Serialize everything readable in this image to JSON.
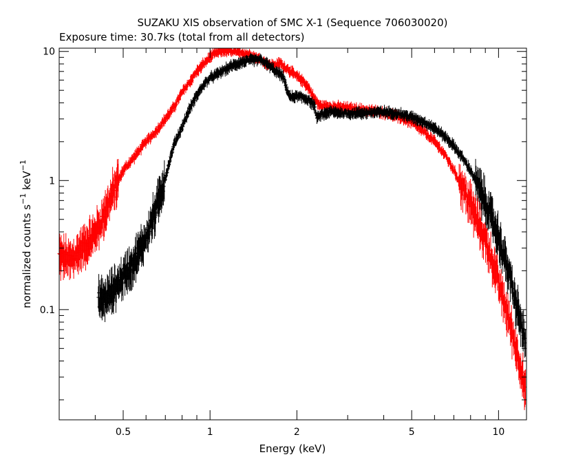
{
  "chart_data": {
    "type": "scatter",
    "title": "SUZAKU XIS observation of SMC X-1 (Sequence 706030020)",
    "subtitle": "Exposure time: 30.7ks (total from all detectors)",
    "xlabel": "Energy (keV)",
    "ylabel": "normalized counts s",
    "ylabel_sup1": "−1",
    "ylabel_mid": " keV",
    "ylabel_sup2": "−1",
    "xscale": "log",
    "yscale": "log",
    "xlim": [
      0.3,
      12.5
    ],
    "ylim": [
      0.014,
      10.6
    ],
    "xticks": [
      {
        "value": 0.5,
        "label": "0.5"
      },
      {
        "value": 1,
        "label": "1"
      },
      {
        "value": 2,
        "label": "2"
      },
      {
        "value": 5,
        "label": "5"
      },
      {
        "value": 10,
        "label": "10"
      }
    ],
    "yticks": [
      {
        "value": 0.1,
        "label": "0.1"
      },
      {
        "value": 1,
        "label": "1"
      },
      {
        "value": 10,
        "label": "10"
      }
    ],
    "series": [
      {
        "color": "#ff0000",
        "points": [
          [
            0.3,
            0.26
          ],
          [
            0.33,
            0.24
          ],
          [
            0.36,
            0.3
          ],
          [
            0.39,
            0.36
          ],
          [
            0.42,
            0.48
          ],
          [
            0.46,
            0.8
          ],
          [
            0.5,
            1.2
          ],
          [
            0.55,
            1.55
          ],
          [
            0.6,
            2.0
          ],
          [
            0.65,
            2.4
          ],
          [
            0.7,
            3.0
          ],
          [
            0.75,
            3.7
          ],
          [
            0.8,
            4.8
          ],
          [
            0.85,
            5.8
          ],
          [
            0.9,
            7.0
          ],
          [
            0.95,
            8.0
          ],
          [
            1.0,
            9.0
          ],
          [
            1.05,
            9.8
          ],
          [
            1.1,
            10.1
          ],
          [
            1.2,
            10.0
          ],
          [
            1.3,
            9.7
          ],
          [
            1.4,
            9.3
          ],
          [
            1.5,
            8.6
          ],
          [
            1.6,
            7.9
          ],
          [
            1.7,
            7.8
          ],
          [
            1.75,
            8.2
          ],
          [
            1.8,
            7.6
          ],
          [
            1.85,
            7.4
          ],
          [
            1.9,
            7.0
          ],
          [
            2.0,
            6.4
          ],
          [
            2.1,
            5.9
          ],
          [
            2.2,
            5.2
          ],
          [
            2.3,
            4.3
          ],
          [
            2.4,
            3.8
          ],
          [
            2.6,
            3.75
          ],
          [
            3.0,
            3.65
          ],
          [
            3.5,
            3.5
          ],
          [
            4.0,
            3.35
          ],
          [
            4.5,
            3.1
          ],
          [
            5.0,
            2.8
          ],
          [
            5.5,
            2.4
          ],
          [
            6.0,
            2.0
          ],
          [
            6.5,
            1.6
          ],
          [
            7.0,
            1.2
          ],
          [
            7.5,
            0.88
          ],
          [
            8.0,
            0.65
          ],
          [
            8.5,
            0.47
          ],
          [
            9.0,
            0.34
          ],
          [
            9.5,
            0.24
          ],
          [
            10.0,
            0.16
          ],
          [
            10.5,
            0.11
          ],
          [
            11.0,
            0.075
          ],
          [
            11.5,
            0.05
          ],
          [
            12.0,
            0.034
          ],
          [
            12.4,
            0.022
          ]
        ]
      },
      {
        "color": "#000000",
        "points": [
          [
            0.41,
            0.12
          ],
          [
            0.43,
            0.12
          ],
          [
            0.46,
            0.14
          ],
          [
            0.5,
            0.18
          ],
          [
            0.55,
            0.24
          ],
          [
            0.6,
            0.36
          ],
          [
            0.65,
            0.6
          ],
          [
            0.7,
            1.05
          ],
          [
            0.75,
            1.9
          ],
          [
            0.8,
            2.6
          ],
          [
            0.85,
            3.6
          ],
          [
            0.9,
            4.6
          ],
          [
            0.95,
            5.5
          ],
          [
            1.0,
            6.2
          ],
          [
            1.1,
            7.0
          ],
          [
            1.2,
            7.8
          ],
          [
            1.3,
            8.3
          ],
          [
            1.4,
            8.6
          ],
          [
            1.5,
            8.6
          ],
          [
            1.6,
            7.8
          ],
          [
            1.7,
            6.9
          ],
          [
            1.75,
            6.7
          ],
          [
            1.8,
            6.2
          ],
          [
            1.85,
            5.0
          ],
          [
            1.9,
            4.4
          ],
          [
            2.0,
            4.5
          ],
          [
            2.1,
            4.4
          ],
          [
            2.2,
            4.2
          ],
          [
            2.3,
            3.8
          ],
          [
            2.35,
            3.0
          ],
          [
            2.4,
            3.2
          ],
          [
            2.6,
            3.4
          ],
          [
            3.0,
            3.3
          ],
          [
            3.5,
            3.35
          ],
          [
            4.0,
            3.4
          ],
          [
            4.5,
            3.3
          ],
          [
            5.0,
            3.1
          ],
          [
            5.5,
            2.85
          ],
          [
            6.0,
            2.55
          ],
          [
            6.5,
            2.2
          ],
          [
            7.0,
            1.85
          ],
          [
            7.5,
            1.5
          ],
          [
            8.0,
            1.2
          ],
          [
            8.5,
            0.9
          ],
          [
            9.0,
            0.68
          ],
          [
            9.5,
            0.5
          ],
          [
            10.0,
            0.36
          ],
          [
            10.5,
            0.25
          ],
          [
            11.0,
            0.17
          ],
          [
            11.5,
            0.11
          ],
          [
            12.0,
            0.075
          ],
          [
            12.4,
            0.055
          ]
        ]
      }
    ]
  }
}
